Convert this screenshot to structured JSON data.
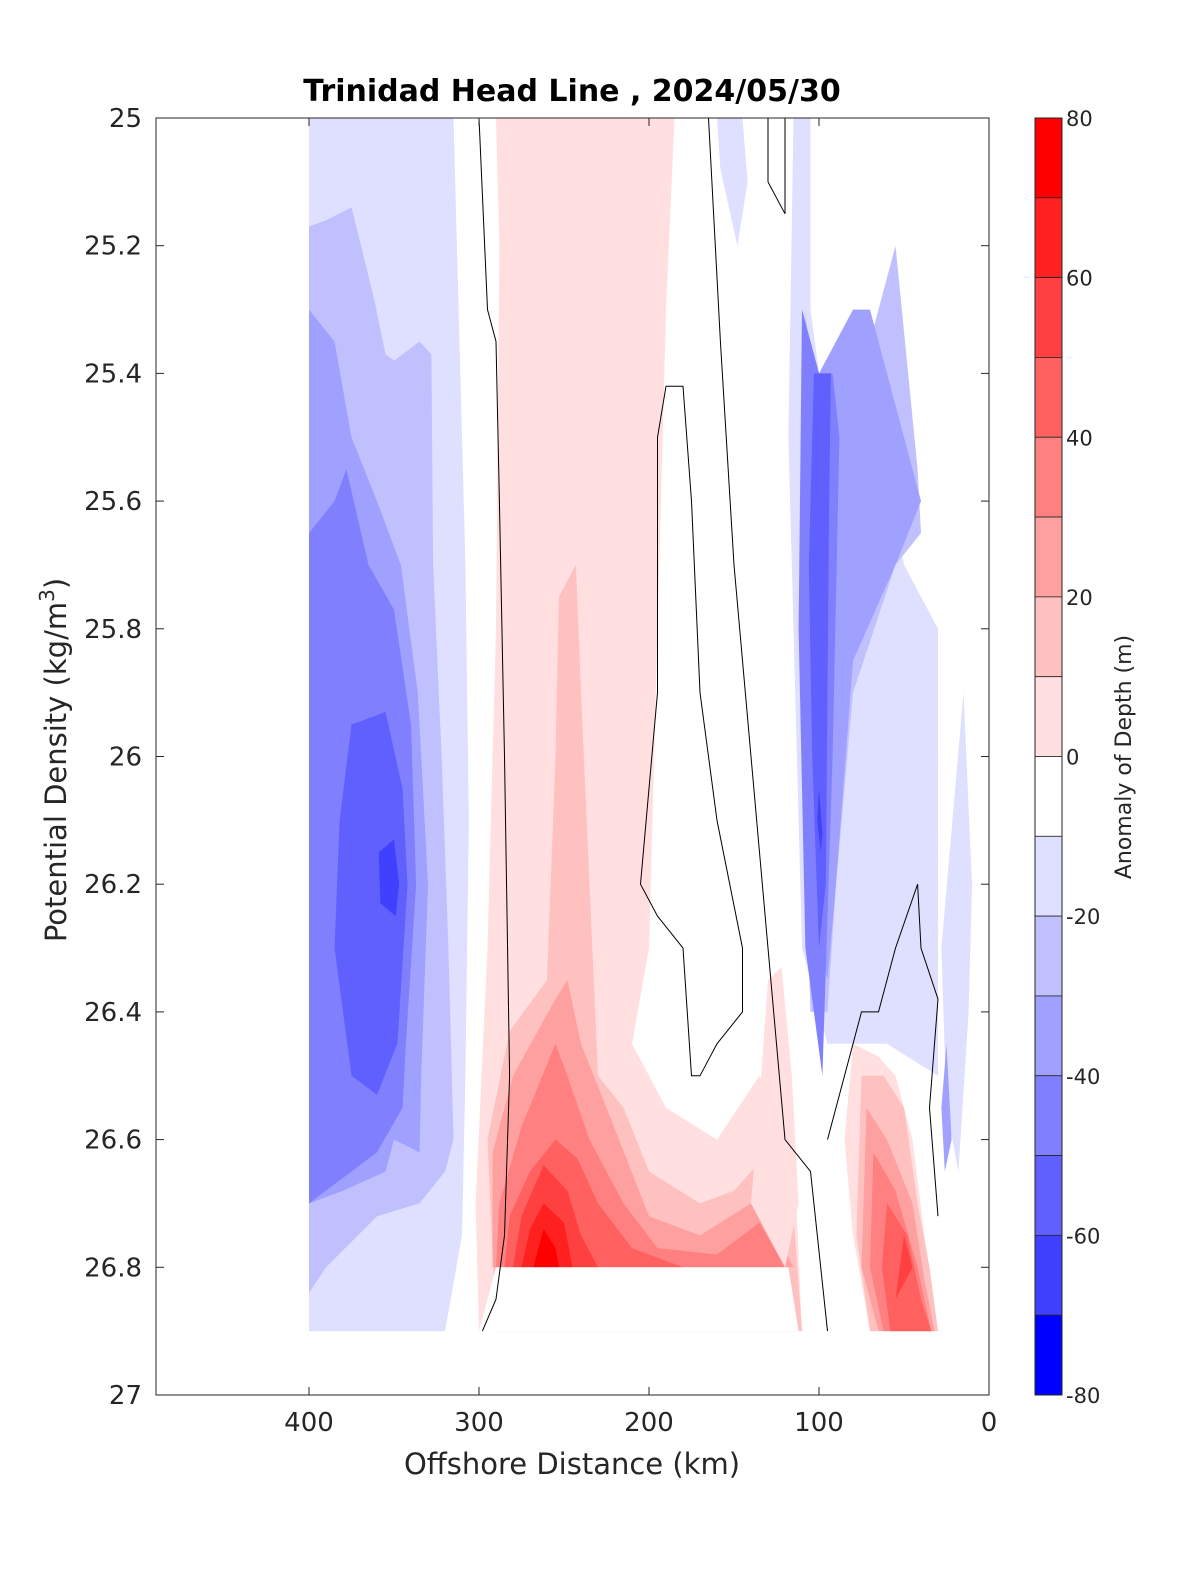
{
  "chart_data": {
    "type": "filled-contour",
    "title": "Trinidad Head Line , 2024/05/30",
    "xlabel": "Offshore Distance (km)",
    "ylabel": "Potential Density (kg/m3)",
    "ylabel_parts": {
      "main": "Potential Density (kg/m",
      "sup": "3",
      "close": ")"
    },
    "colorbar_label": "Anomaly of Depth (m)",
    "x_axis": {
      "range": [
        490,
        0
      ],
      "reversed": true,
      "ticks": [
        400,
        300,
        200,
        100,
        0
      ],
      "tick_labels": [
        "400",
        "300",
        "200",
        "100",
        "0"
      ]
    },
    "y_axis": {
      "range": [
        25,
        27
      ],
      "reversed": true,
      "ticks": [
        25,
        25.2,
        25.4,
        25.6,
        25.8,
        26,
        26.2,
        26.4,
        26.6,
        26.8,
        27
      ],
      "tick_labels": [
        "25",
        "25.2",
        "25.4",
        "25.6",
        "25.8",
        "26",
        "26.2",
        "26.4",
        "26.6",
        "26.8",
        "27"
      ]
    },
    "colorbar": {
      "range": [
        -80,
        80
      ],
      "ticks": [
        80,
        60,
        40,
        20,
        0,
        -20,
        -40,
        -60,
        -80
      ],
      "tick_labels": [
        "80",
        "60",
        "40",
        "20",
        "0",
        "-20",
        "-40",
        "-60",
        "-80"
      ],
      "levels": [
        {
          "from": 70,
          "to": 80,
          "color": "#ff0000"
        },
        {
          "from": 60,
          "to": 70,
          "color": "#ff2020"
        },
        {
          "from": 50,
          "to": 60,
          "color": "#ff4040"
        },
        {
          "from": 40,
          "to": 50,
          "color": "#ff6060"
        },
        {
          "from": 30,
          "to": 40,
          "color": "#ff8080"
        },
        {
          "from": 20,
          "to": 30,
          "color": "#ffa0a0"
        },
        {
          "from": 10,
          "to": 20,
          "color": "#ffc0c0"
        },
        {
          "from": 0,
          "to": 10,
          "color": "#ffdfdf"
        },
        {
          "from": -10,
          "to": 0,
          "color": "#ffffff"
        },
        {
          "from": -20,
          "to": -10,
          "color": "#dfdfff"
        },
        {
          "from": -30,
          "to": -20,
          "color": "#c0c0ff"
        },
        {
          "from": -40,
          "to": -30,
          "color": "#a0a0ff"
        },
        {
          "from": -50,
          "to": -40,
          "color": "#8080ff"
        },
        {
          "from": -60,
          "to": -50,
          "color": "#6060ff"
        },
        {
          "from": -70,
          "to": -60,
          "color": "#4040ff"
        },
        {
          "from": -80,
          "to": -70,
          "color": "#0000ff"
        }
      ]
    },
    "features": [
      {
        "kind": "negative-anomaly-band",
        "x_range_km": [
          310,
          400
        ],
        "density_range": [
          25,
          26.9
        ],
        "min_anomaly_m": -55
      },
      {
        "kind": "positive-anomaly-band",
        "x_range_km": [
          185,
          290
        ],
        "density_range": [
          25,
          26.9
        ],
        "max_anomaly_m": 75
      },
      {
        "kind": "positive-anomaly-core",
        "x_range_km": [
          110,
          290
        ],
        "density_range": [
          26.5,
          26.8
        ],
        "max_anomaly_m": 70
      },
      {
        "kind": "negative-anomaly-core",
        "x_range_km": [
          85,
          115
        ],
        "density_range": [
          25.3,
          26.5
        ],
        "min_anomaly_m": -55
      },
      {
        "kind": "positive-anomaly-nearshore",
        "x_range_km": [
          30,
          75
        ],
        "density_range": [
          26.45,
          26.9
        ],
        "max_anomaly_m": 55
      },
      {
        "kind": "masked-region",
        "x_range_km": [
          115,
          290
        ],
        "density_range": [
          26.8,
          26.9
        ]
      }
    ],
    "zero_contours": "black lines along the anomaly = 0 boundary"
  },
  "colors": {
    "neg1": "#dfdfff",
    "neg2": "#c0c0ff",
    "neg3": "#a0a0ff",
    "neg4": "#8080ff",
    "neg5": "#6060ff",
    "neg6": "#4040ff",
    "pos1": "#ffdfdf",
    "pos2": "#ffc0c0",
    "pos3": "#ffa0a0",
    "pos4": "#ff8080",
    "pos5": "#ff6060",
    "pos6": "#ff4040",
    "pos7": "#ff2020",
    "pos8": "#ff0000"
  }
}
